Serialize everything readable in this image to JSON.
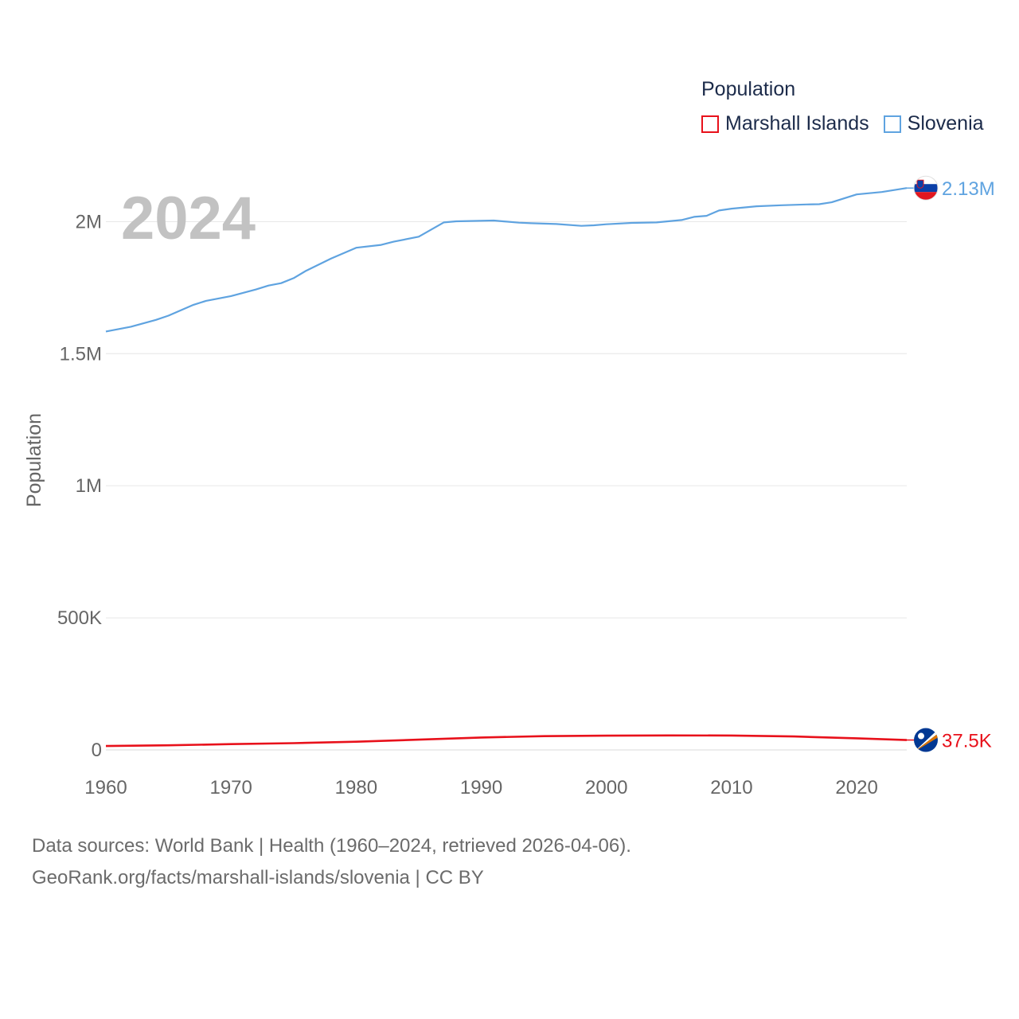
{
  "chart_data": {
    "type": "line",
    "year_label": "2024",
    "ylabel": "Population",
    "xlim": [
      1960,
      2024
    ],
    "ylim": [
      0,
      2200000
    ],
    "x_ticks": [
      1960,
      1970,
      1980,
      1990,
      2000,
      2010,
      2020
    ],
    "x_tick_labels": [
      "1960",
      "1970",
      "1980",
      "1990",
      "2000",
      "2010",
      "2020"
    ],
    "y_ticks": [
      0,
      500000,
      1000000,
      1500000,
      2000000
    ],
    "y_tick_labels": [
      "0",
      "500K",
      "1M",
      "1.5M",
      "2M"
    ],
    "grid": true,
    "legend": {
      "title": "Population",
      "position": "top-right",
      "items": [
        "Marshall Islands",
        "Slovenia"
      ]
    },
    "series": [
      {
        "name": "Marshall Islands",
        "color": "#e8111b",
        "end_label": "37.5K",
        "flag_icon": "marshall-islands-flag-icon",
        "x": [
          1960,
          1965,
          1970,
          1975,
          1980,
          1985,
          1990,
          1995,
          2000,
          2005,
          2010,
          2015,
          2020,
          2024
        ],
        "values": [
          14900,
          17500,
          22000,
          25500,
          31000,
          39000,
          47000,
          52000,
          54000,
          55000,
          54500,
          51000,
          44000,
          37500
        ]
      },
      {
        "name": "Slovenia",
        "color": "#5fa3e0",
        "end_label": "2.13M",
        "flag_icon": "slovenia-flag-icon",
        "x": [
          1960,
          1962,
          1964,
          1965,
          1967,
          1968,
          1970,
          1972,
          1973,
          1974,
          1975,
          1976,
          1978,
          1980,
          1982,
          1983,
          1985,
          1987,
          1988,
          1991,
          1993,
          1994,
          1996,
          1998,
          1999,
          2000,
          2002,
          2004,
          2006,
          2007,
          2008,
          2009,
          2010,
          2012,
          2014,
          2016,
          2017,
          2018,
          2020,
          2022,
          2024
        ],
        "values": [
          1584000,
          1602000,
          1628000,
          1644000,
          1685000,
          1700000,
          1718000,
          1743000,
          1758000,
          1767000,
          1786000,
          1814000,
          1860000,
          1901000,
          1912000,
          1924000,
          1943000,
          1997000,
          2001000,
          2004000,
          1996000,
          1994000,
          1991000,
          1984000,
          1986000,
          1990000,
          1995000,
          1997000,
          2006000,
          2018000,
          2022000,
          2042000,
          2049000,
          2058000,
          2062000,
          2065000,
          2066000,
          2073000,
          2103000,
          2112000,
          2127000
        ]
      }
    ]
  },
  "footer": {
    "line1": "Data sources: World Bank | Health (1960–2024, retrieved 2026-04-06).",
    "line2": "GeoRank.org/facts/marshall-islands/slovenia | CC BY"
  }
}
